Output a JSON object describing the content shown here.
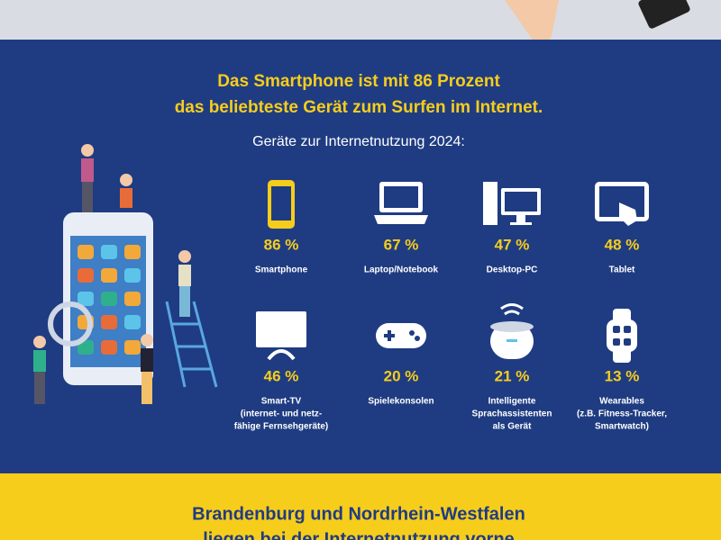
{
  "header": {
    "title_lines": [
      "Das Smartphone ist mit 86 Prozent",
      "das beliebteste Gerät zum Surfen im Internet."
    ],
    "subtitle": "Geräte zur Internetnutzung 2024:"
  },
  "devices": [
    {
      "percent": "86 %",
      "label": [
        "Smartphone"
      ]
    },
    {
      "percent": "67 %",
      "label": [
        "Laptop/Notebook"
      ]
    },
    {
      "percent": "47 %",
      "label": [
        "Desktop-PC"
      ]
    },
    {
      "percent": "48 %",
      "label": [
        "Tablet"
      ]
    },
    {
      "percent": "46 %",
      "label": [
        "Smart-TV",
        "(internet- und netz-",
        "fähige Fernsehgeräte)"
      ]
    },
    {
      "percent": "20 %",
      "label": [
        "Spielekonsolen"
      ]
    },
    {
      "percent": "21 %",
      "label": [
        "Intelligente",
        "Sprachassistenten",
        "als Gerät"
      ]
    },
    {
      "percent": "13 %",
      "label": [
        "Wearables",
        "(z.B. Fitness-Tracker,",
        "Smartwatch)"
      ]
    }
  ],
  "footer": {
    "lines": [
      "Brandenburg und Nordrhein-Westfalen",
      "liegen bei der Internetnutzung vorne"
    ]
  }
}
